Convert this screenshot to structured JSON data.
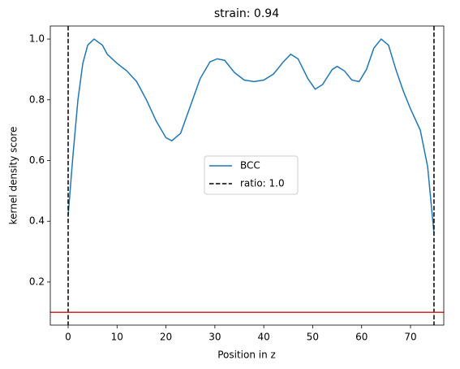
{
  "chart_data": {
    "type": "line",
    "title": "strain: 0.94",
    "xlabel": "Position in z",
    "ylabel": "kernel density score",
    "series": [
      {
        "name": "BCC",
        "color": "#1f77b4",
        "x": [
          0,
          1,
          2,
          3,
          4,
          5.3,
          7,
          8,
          10,
          12,
          14,
          16,
          18,
          20,
          21.2,
          23,
          25,
          27,
          29,
          30.5,
          32,
          34,
          36,
          38,
          40,
          42,
          44,
          45.5,
          47,
          49,
          50.5,
          52,
          54,
          55,
          56.5,
          58,
          59.5,
          61,
          62.5,
          64,
          65.5,
          67,
          68.5,
          70,
          72,
          73.5,
          74.8
        ],
        "values": [
          0.42,
          0.62,
          0.8,
          0.92,
          0.98,
          1.0,
          0.98,
          0.95,
          0.92,
          0.895,
          0.86,
          0.8,
          0.73,
          0.675,
          0.665,
          0.69,
          0.78,
          0.87,
          0.925,
          0.935,
          0.93,
          0.89,
          0.865,
          0.86,
          0.865,
          0.885,
          0.925,
          0.95,
          0.935,
          0.87,
          0.835,
          0.85,
          0.9,
          0.91,
          0.895,
          0.865,
          0.86,
          0.9,
          0.97,
          1.0,
          0.98,
          0.9,
          0.83,
          0.77,
          0.7,
          0.58,
          0.36
        ]
      }
    ],
    "vlines": {
      "name": "ratio: 1.0",
      "color": "#000000",
      "x": [
        0,
        74.8
      ]
    },
    "hline": {
      "color": "#d62728",
      "y": 0.1
    },
    "xlim": [
      -3.65,
      76.8
    ],
    "xticks": [
      0,
      10,
      20,
      30,
      40,
      50,
      60,
      70
    ],
    "ylim": [
      0.058,
      1.043
    ],
    "yticks": [
      0.2,
      0.4,
      0.6,
      0.8,
      {
        "value": 1,
        "label": "1.0"
      }
    ],
    "legend": "center"
  }
}
